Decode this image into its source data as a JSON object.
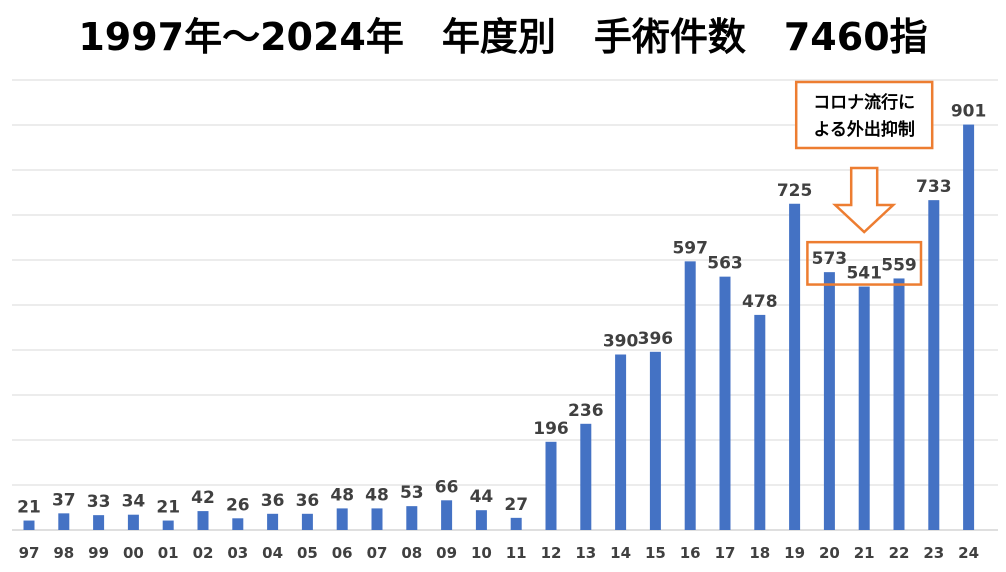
{
  "title": "1997年～2024年　年度別　手術件数　7460指",
  "chart_data": {
    "type": "bar",
    "categories": [
      "97",
      "98",
      "99",
      "00",
      "01",
      "02",
      "03",
      "04",
      "05",
      "06",
      "07",
      "08",
      "09",
      "10",
      "11",
      "12",
      "13",
      "14",
      "15",
      "16",
      "17",
      "18",
      "19",
      "20",
      "21",
      "22",
      "23",
      "24"
    ],
    "values": [
      21,
      37,
      33,
      34,
      21,
      42,
      26,
      36,
      36,
      48,
      48,
      53,
      66,
      44,
      27,
      196,
      236,
      390,
      396,
      597,
      563,
      478,
      725,
      573,
      541,
      559,
      733,
      901
    ],
    "title": "1997年～2024年　年度別　手術件数　7460指",
    "ylim": [
      0,
      1000
    ],
    "grid": true,
    "legend": "none",
    "bar_color": "#4472c4",
    "annotation": {
      "lines": [
        "コロナ流行に",
        "よる外出抑制"
      ],
      "highlighted_categories": [
        "20",
        "21",
        "22"
      ],
      "color": "#ed7d31"
    }
  }
}
